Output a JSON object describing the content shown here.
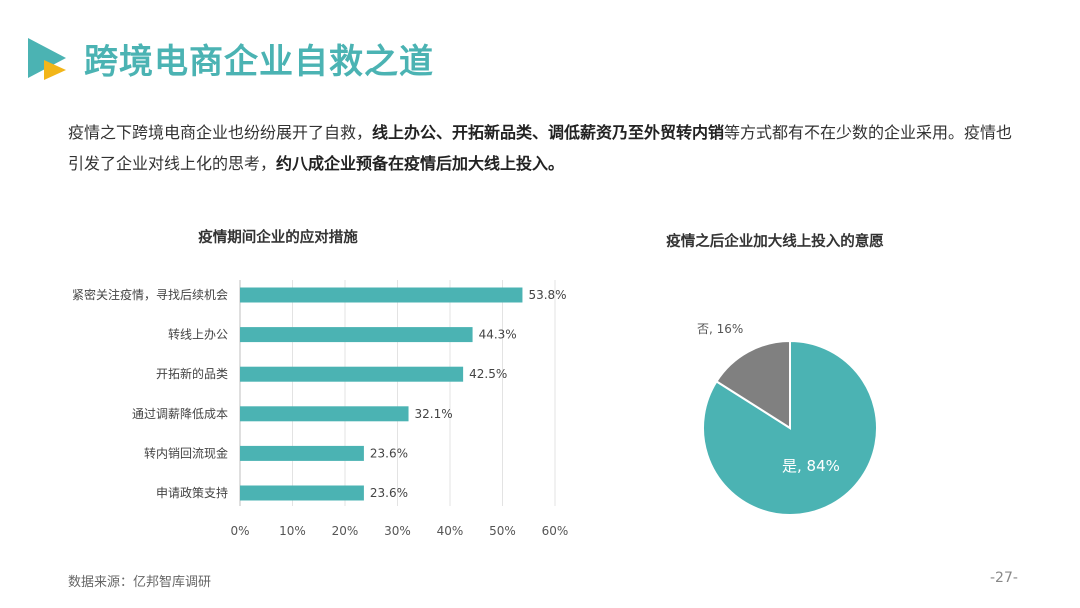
{
  "header": {
    "title": "跨境电商企业自救之道"
  },
  "intro": {
    "p1": "疫情之下跨境电商企业也纷纷展开了自救，",
    "b1": "线上办公、开拓新品类、调低薪资乃至外贸转内销",
    "p2": "等方式都有不在少数的企业采用。疫情也引发了企业对线上化的思考，",
    "b2": "约八成企业预备在疫情后加大线上投入。"
  },
  "footer": {
    "source": "数据来源：亿邦智库调研",
    "page": "-27-"
  },
  "chart_data": [
    {
      "type": "bar",
      "orientation": "horizontal",
      "title": "疫情期间企业的应对措施",
      "categories": [
        "紧密关注疫情，寻找后续机会",
        "转线上办公",
        "开拓新的品类",
        "通过调薪降低成本",
        "转内销回流现金",
        "申请政策支持"
      ],
      "values": [
        53.8,
        44.3,
        42.5,
        32.1,
        23.6,
        23.6
      ],
      "value_labels": [
        "53.8%",
        "44.3%",
        "42.5%",
        "32.1%",
        "23.6%",
        "23.6%"
      ],
      "xlim": [
        0,
        60
      ],
      "xticks": [
        "0%",
        "10%",
        "20%",
        "30%",
        "40%",
        "50%",
        "60%"
      ],
      "grid": "vertical",
      "color": "#4bb3b3"
    },
    {
      "type": "pie",
      "title": "疫情之后企业加大线上投入的意愿",
      "slices": [
        {
          "label": "是, 84%",
          "value": 84,
          "color": "#4bb3b3"
        },
        {
          "label": "否, 16%",
          "value": 16,
          "color": "#808080"
        }
      ]
    }
  ],
  "colors": {
    "accent": "#4bb3b3",
    "logo_accent": "#f2b619",
    "pie_secondary": "#808080"
  }
}
